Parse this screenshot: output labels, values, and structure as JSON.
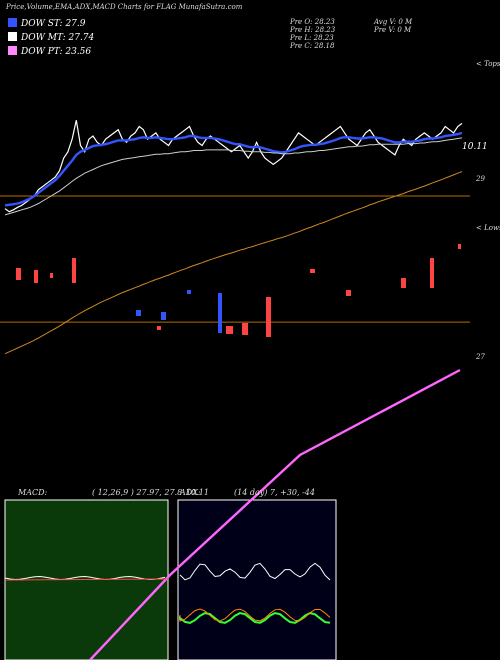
{
  "header": {
    "title": "Price,Volume,EMA,ADX,MACD Charts for FLAG",
    "site": "MunafaSutra.com"
  },
  "legend": [
    {
      "label": "DOW ST: 27.9",
      "color": "#3355ff"
    },
    {
      "label": "DOW MT: 27.74",
      "color": "#ffffff"
    },
    {
      "label": "DOW PT: 23.56",
      "color": "#ff88ff"
    }
  ],
  "ohlc": {
    "open": "Pre   O: 28.23",
    "high": "Pre   H: 28.23",
    "low": "Pre   L: 28.23",
    "close": "Pre   C: 28.18",
    "avg_volume": "Avg V: 0   M",
    "prev_volume": "Pre   V: 0   M"
  },
  "main_chart": {
    "top_note": "< Tops",
    "low_note": "< Lows",
    "last_price_label": "10.11",
    "price_levels": [
      {
        "label": "29",
        "value": 29.0
      },
      {
        "label": "27",
        "value": 27.0
      }
    ],
    "colors": {
      "level": "#b36b00",
      "ema_short": "#3355ff",
      "ema_long": "#cc8822",
      "pt": "#ff66ff"
    }
  },
  "macd_panel": {
    "label": "MACD:",
    "params": "( 12,26,9 ) 27.97, 27.8",
    "bg": "#0a3a0a"
  },
  "adx_panel": {
    "label": "ADX:",
    "params": "(14 day) 7, +30, -44",
    "bg": "#000018"
  },
  "chart_data": {
    "type": "line",
    "x": [
      1,
      2,
      3,
      4,
      5,
      6,
      7,
      8,
      9,
      10,
      11,
      12,
      13,
      14,
      15,
      16,
      17,
      18,
      19,
      20,
      21,
      22,
      23,
      24,
      25,
      26,
      27,
      28,
      29,
      30,
      31,
      32,
      33,
      34,
      35,
      36,
      37,
      38,
      39,
      40,
      41,
      42,
      43,
      44,
      45,
      46,
      47,
      48,
      49,
      50,
      51,
      52,
      53,
      54,
      55,
      56,
      57,
      58,
      59,
      60,
      61,
      62,
      63,
      64,
      65,
      66,
      67,
      68,
      69,
      70,
      71,
      72,
      73,
      74,
      75,
      76,
      77,
      78,
      79,
      80,
      81,
      82,
      83,
      84,
      85,
      86,
      87,
      88,
      89,
      90,
      91,
      92,
      93,
      94,
      95,
      96,
      97,
      98,
      99,
      100,
      101,
      102,
      103,
      104,
      105,
      106,
      107,
      108,
      109,
      110
    ],
    "series": [
      {
        "values": [
          28.8,
          28.75,
          28.78,
          28.82,
          28.85,
          28.9,
          28.95,
          29.0,
          29.1,
          29.15,
          29.2,
          29.25,
          29.3,
          29.4,
          29.6,
          29.7,
          29.9,
          30.2,
          29.8,
          29.7,
          29.9,
          29.95,
          29.85,
          29.8,
          29.9,
          29.95,
          30.0,
          30.05,
          29.9,
          29.85,
          29.95,
          30.0,
          30.1,
          30.05,
          29.9,
          29.95,
          30.0,
          29.9,
          29.85,
          29.8,
          29.9,
          29.95,
          30.0,
          30.05,
          30.1,
          29.95,
          29.85,
          29.8,
          29.9,
          29.95,
          29.9,
          29.85,
          29.8,
          29.75,
          29.7,
          29.75,
          29.8,
          29.7,
          29.6,
          29.7,
          29.85,
          29.7,
          29.6,
          29.55,
          29.5,
          29.55,
          29.6,
          29.7,
          29.8,
          29.9,
          30.0,
          29.95,
          29.9,
          29.85,
          29.8,
          29.85,
          29.9,
          29.95,
          30.0,
          30.05,
          30.1,
          30.0,
          29.9,
          29.85,
          29.8,
          29.9,
          30.0,
          30.05,
          29.95,
          29.85,
          29.8,
          29.75,
          29.7,
          29.65,
          29.8,
          29.9,
          29.85,
          29.8,
          29.9,
          29.95,
          30.0,
          29.95,
          29.9,
          29.95,
          30.0,
          30.1,
          30.05,
          30.0,
          30.1,
          30.15
        ]
      },
      {
        "values": [
          28.85,
          28.86,
          28.87,
          28.88,
          28.9,
          28.93,
          28.96,
          29.0,
          29.05,
          29.1,
          29.15,
          29.2,
          29.25,
          29.32,
          29.4,
          29.48,
          29.56,
          29.65,
          29.7,
          29.73,
          29.76,
          29.79,
          29.8,
          29.81,
          29.82,
          29.84,
          29.86,
          29.88,
          29.88,
          29.88,
          29.89,
          29.9,
          29.92,
          29.93,
          29.92,
          29.92,
          29.93,
          29.92,
          29.91,
          29.9,
          29.9,
          29.91,
          29.92,
          29.93,
          29.95,
          29.95,
          29.93,
          29.92,
          29.92,
          29.92,
          29.91,
          29.9,
          29.88,
          29.86,
          29.84,
          29.82,
          29.82,
          29.8,
          29.78,
          29.77,
          29.78,
          29.77,
          29.75,
          29.73,
          29.71,
          29.7,
          29.69,
          29.7,
          29.72,
          29.74,
          29.77,
          29.79,
          29.8,
          29.81,
          29.81,
          29.82,
          29.83,
          29.85,
          29.87,
          29.89,
          29.92,
          29.93,
          29.93,
          29.92,
          29.91,
          29.91,
          29.92,
          29.93,
          29.93,
          29.92,
          29.91,
          29.89,
          29.87,
          29.85,
          29.85,
          29.86,
          29.86,
          29.86,
          29.87,
          29.88,
          29.9,
          29.91,
          29.91,
          29.92,
          29.93,
          29.95,
          29.96,
          29.97,
          29.98,
          30.0
        ]
      },
      {
        "values": [
          28.7,
          28.72,
          28.74,
          28.76,
          28.78,
          28.8,
          28.82,
          28.85,
          28.88,
          28.92,
          28.96,
          29.0,
          29.04,
          29.08,
          29.13,
          29.18,
          29.23,
          29.28,
          29.32,
          29.36,
          29.39,
          29.42,
          29.45,
          29.48,
          29.5,
          29.52,
          29.54,
          29.56,
          29.58,
          29.59,
          29.6,
          29.61,
          29.62,
          29.63,
          29.64,
          29.65,
          29.66,
          29.66,
          29.67,
          29.67,
          29.68,
          29.69,
          29.7,
          29.7,
          29.71,
          29.72,
          29.72,
          29.72,
          29.73,
          29.73,
          29.73,
          29.73,
          29.73,
          29.73,
          29.72,
          29.72,
          29.72,
          29.71,
          29.71,
          29.7,
          29.7,
          29.7,
          29.69,
          29.69,
          29.68,
          29.68,
          29.67,
          29.67,
          29.67,
          29.68,
          29.68,
          29.69,
          29.7,
          29.7,
          29.71,
          29.72,
          29.72,
          29.73,
          29.74,
          29.75,
          29.76,
          29.77,
          29.78,
          29.78,
          29.79,
          29.79,
          29.8,
          29.81,
          29.81,
          29.82,
          29.82,
          29.82,
          29.82,
          29.82,
          29.82,
          29.82,
          29.83,
          29.83,
          29.83,
          29.84,
          29.84,
          29.85,
          29.86,
          29.86,
          29.87,
          29.88,
          29.89,
          29.9,
          29.91,
          29.92
        ]
      }
    ],
    "ylim": [
      26.4,
      30.6
    ]
  }
}
